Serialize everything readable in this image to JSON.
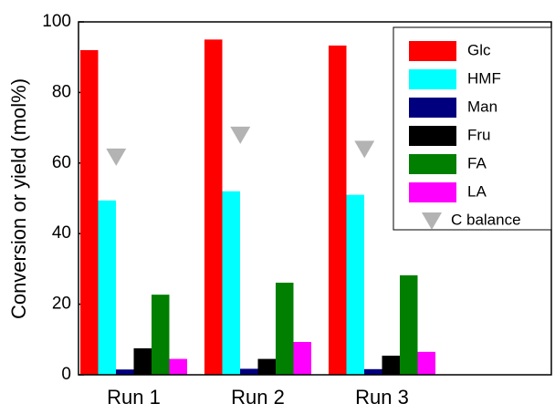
{
  "chart_data": {
    "type": "bar",
    "ylabel": "Conversion or yield (mol%)",
    "categories": [
      "Run 1",
      "Run 2",
      "Run 3"
    ],
    "series": [
      {
        "name": "Glc",
        "color": "#ff0000",
        "values": [
          92,
          95,
          93.3
        ]
      },
      {
        "name": "HMF",
        "color": "#00ffff",
        "values": [
          49.4,
          52,
          51
        ]
      },
      {
        "name": "Man",
        "color": "#00007f",
        "values": [
          1.5,
          1.7,
          1.6
        ]
      },
      {
        "name": "Fru",
        "color": "#000000",
        "values": [
          7.5,
          4.5,
          5.4
        ]
      },
      {
        "name": "FA",
        "color": "#007f00",
        "values": [
          22.7,
          26.1,
          28.2
        ]
      },
      {
        "name": "LA",
        "color": "#ff00ff",
        "values": [
          4.5,
          9.3,
          6.5
        ]
      },
      {
        "name": "C balance",
        "color": "#b3b3b3",
        "marker": "triangle-down",
        "values": [
          61.8,
          68,
          64
        ]
      }
    ],
    "ylim": [
      0,
      100
    ],
    "yticks": [
      0,
      20,
      40,
      60,
      80,
      100
    ],
    "legend": "upper right"
  }
}
